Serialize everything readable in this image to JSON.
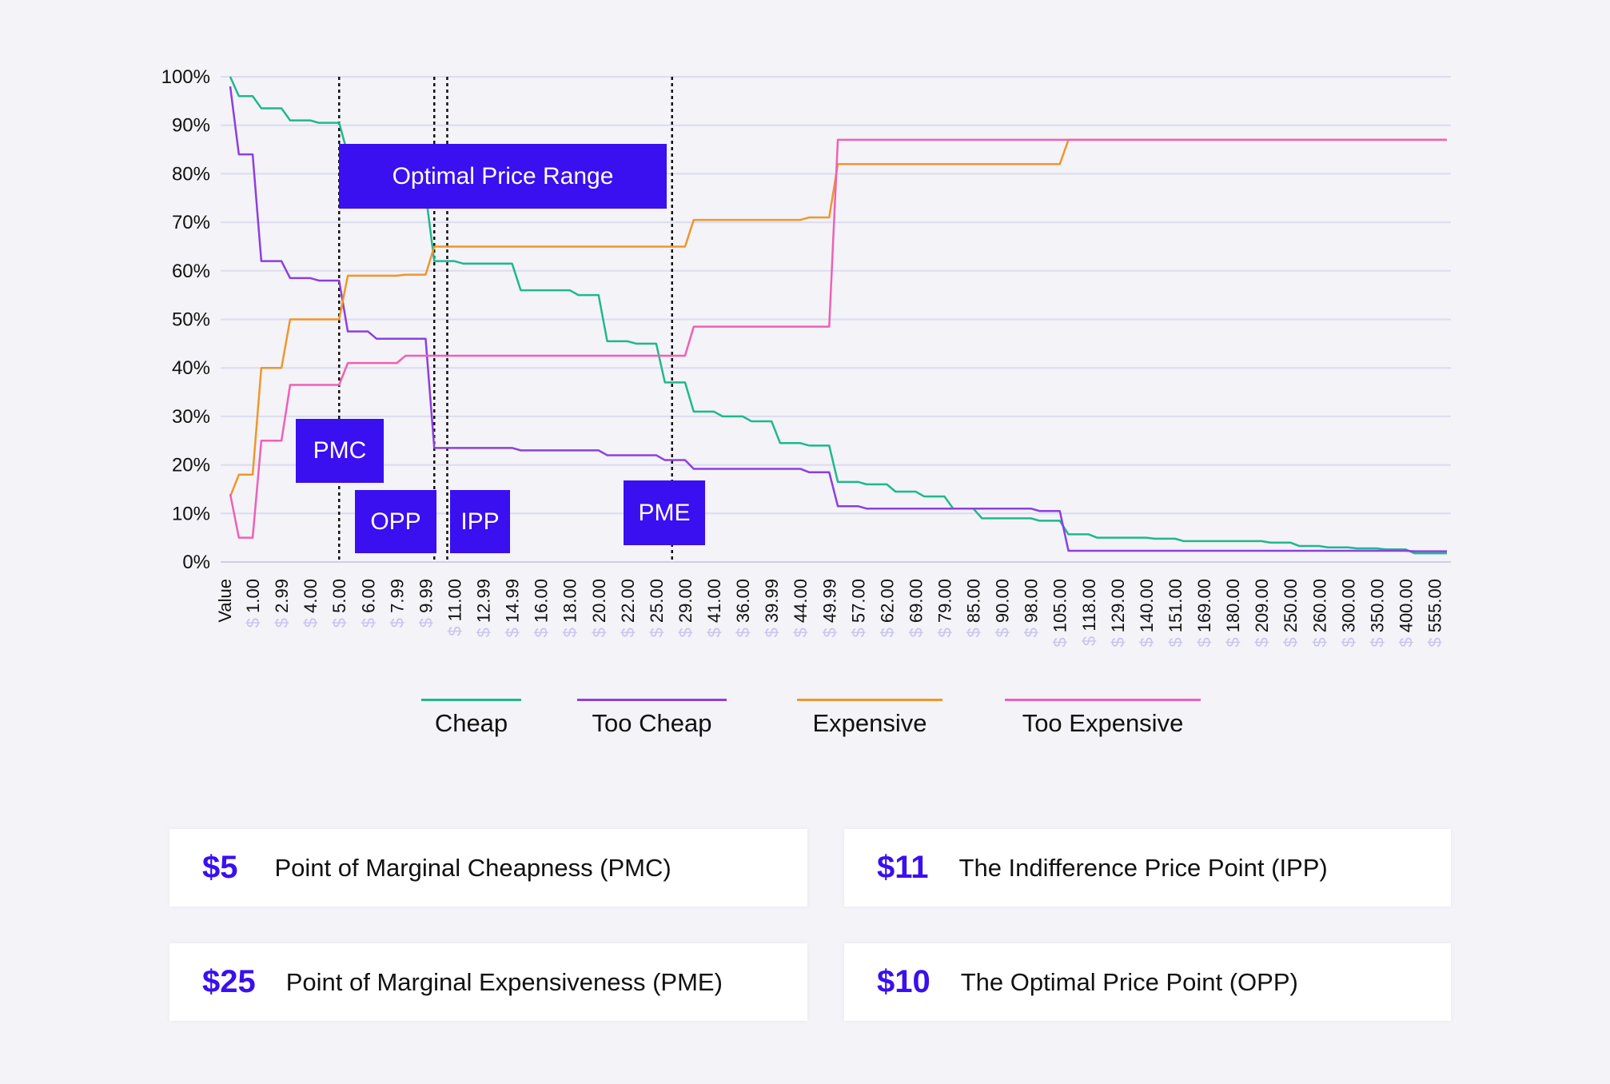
{
  "chart_data": {
    "type": "line",
    "categories": [
      "Value",
      "$ 1.00",
      "$ 2.99",
      "$ 4.00",
      "$ 5.00",
      "$ 6.00",
      "$ 7.99",
      "$ 9.99",
      "$ 11.00",
      "$ 12.99",
      "$ 14.99",
      "$ 16.00",
      "$ 18.00",
      "$ 20.00",
      "$ 22.00",
      "$ 25.00",
      "$ 29.00",
      "$ 41.00",
      "$ 36.00",
      "$ 39.99",
      "$ 44.00",
      "$ 49.99",
      "$ 57.00",
      "$ 62.00",
      "$ 69.00",
      "$ 79.00",
      "$ 85.00",
      "$ 90.00",
      "$ 98.00",
      "$ 105.00",
      "$ 118.00",
      "$ 129.00",
      "$ 140.00",
      "$ 151.00",
      "$ 169.00",
      "$ 180.00",
      "$ 209.00",
      "$ 250.00",
      "$ 260.00",
      "$ 300.00",
      "$ 350.00",
      "$ 400.00",
      "$ 555.00"
    ],
    "yticks": [
      "0%",
      "10%",
      "20%",
      "30%",
      "40%",
      "50%",
      "60%",
      "70%",
      "80%",
      "90%",
      "100%"
    ],
    "ylim": [
      0,
      100
    ],
    "grid": true,
    "legend_position": "bottom",
    "series": [
      {
        "name": "Cheap",
        "color": "#1fb88c",
        "values": [
          100,
          96,
          93.5,
          91,
          90.5,
          84,
          80,
          76,
          62,
          61.5,
          61.5,
          56,
          56,
          55,
          45.5,
          45,
          37,
          31,
          30,
          29,
          24.5,
          24,
          16.5,
          16,
          14.5,
          13.5,
          11,
          9,
          9,
          8.5,
          5.7,
          5,
          5,
          4.8,
          4.3,
          4.3,
          4.3,
          4,
          3.3,
          3,
          2.8,
          2.6,
          1.8
        ]
      },
      {
        "name": "Too Cheap",
        "color": "#8c3fe0",
        "values": [
          98,
          84,
          62,
          58.5,
          58,
          47.5,
          46,
          46,
          23.5,
          23.5,
          23.5,
          23,
          23,
          23,
          22,
          22,
          21,
          19.2,
          19.2,
          19.2,
          19.2,
          18.5,
          11.5,
          11,
          11,
          11,
          11,
          11,
          11,
          10.5,
          2.3,
          2.3,
          2.3,
          2.3,
          2.3,
          2.3,
          2.3,
          2.3,
          2.3,
          2.3,
          2.3,
          2.3,
          2.2
        ]
      },
      {
        "name": "Expensive",
        "color": "#f0962a",
        "values": [
          13.5,
          18,
          40,
          50,
          50,
          59,
          59,
          59.2,
          65,
          65,
          65,
          65,
          65,
          65,
          65,
          65,
          65,
          70.5,
          70.5,
          70.5,
          70.5,
          71,
          82,
          82,
          82,
          82,
          82,
          82,
          82,
          82,
          87,
          87,
          87,
          87,
          87,
          87,
          87,
          87,
          87,
          87,
          87,
          87,
          87
        ]
      },
      {
        "name": "Too Expensive",
        "color": "#f060b4",
        "values": [
          14,
          5,
          25,
          36.5,
          36.5,
          41,
          41,
          42.5,
          42.5,
          42.5,
          42.5,
          42.5,
          42.5,
          42.5,
          42.5,
          42.5,
          42.5,
          48.5,
          48.5,
          48.5,
          48.5,
          48.5,
          87,
          87,
          87,
          87,
          87,
          87,
          87,
          87,
          87,
          87,
          87,
          87,
          87,
          87,
          87,
          87,
          87,
          87,
          87,
          87,
          87
        ]
      }
    ],
    "annotations": {
      "range_label": "Optimal Price Range",
      "pmc": "PMC",
      "opp": "OPP",
      "ipp": "IPP",
      "pme": "PME"
    }
  },
  "summary": [
    {
      "value": "$5",
      "label": "Point of Marginal Cheapness (PMC)"
    },
    {
      "value": "$11",
      "label": "The Indifference Price Point (IPP)"
    },
    {
      "value": "$25",
      "label": "Point of Marginal Expensiveness (PME)"
    },
    {
      "value": "$10",
      "label": "The Optimal Price Point (OPP)"
    }
  ],
  "colors": {
    "accent": "#3a0ff0",
    "grid": "#dcdcef",
    "background": "#f3f3f8"
  }
}
